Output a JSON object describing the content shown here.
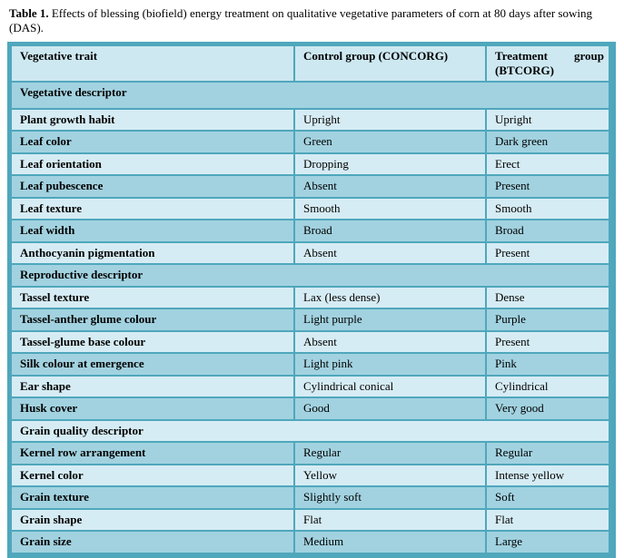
{
  "caption": {
    "label": "Table 1.",
    "text": " Effects of blessing (biofield) energy treatment on qualitative vegetative parameters of corn at 80 days after sowing (DAS)."
  },
  "table": {
    "columns": [
      "Vegetative trait",
      "Control group (CONCORG)",
      "Treatment group (BTCORG)"
    ],
    "rows": [
      {
        "type": "section",
        "label": "Vegetative descriptor"
      },
      {
        "type": "data",
        "trait": "Plant growth habit",
        "control": "Upright",
        "treatment": "Upright"
      },
      {
        "type": "data",
        "trait": "Leaf color",
        "control": "Green",
        "treatment": "Dark green"
      },
      {
        "type": "data",
        "trait": "Leaf orientation",
        "control": "Dropping",
        "treatment": "Erect"
      },
      {
        "type": "data",
        "trait": "Leaf pubescence",
        "control": "Absent",
        "treatment": "Present"
      },
      {
        "type": "data",
        "trait": "Leaf texture",
        "control": "Smooth",
        "treatment": "Smooth"
      },
      {
        "type": "data",
        "trait": "Leaf width",
        "control": "Broad",
        "treatment": "Broad"
      },
      {
        "type": "data",
        "trait": "Anthocyanin pigmentation",
        "control": "Absent",
        "treatment": "Present"
      },
      {
        "type": "section",
        "label": "Reproductive descriptor"
      },
      {
        "type": "data",
        "trait": "Tassel texture",
        "control": "Lax (less dense)",
        "treatment": "Dense"
      },
      {
        "type": "data",
        "trait": "Tassel-anther glume colour",
        "control": "Light purple",
        "treatment": "Purple"
      },
      {
        "type": "data",
        "trait": "Tassel-glume base colour",
        "control": "Absent",
        "treatment": "Present"
      },
      {
        "type": "data",
        "trait": "Silk colour at emergence",
        "control": "Light pink",
        "treatment": "Pink"
      },
      {
        "type": "data",
        "trait": "Ear shape",
        "control": "Cylindrical conical",
        "treatment": "Cylindrical"
      },
      {
        "type": "data",
        "trait": "Husk cover",
        "control": "Good",
        "treatment": "Very good"
      },
      {
        "type": "section",
        "label": "Grain quality descriptor"
      },
      {
        "type": "data",
        "trait": "Kernel row arrangement",
        "control": "Regular",
        "treatment": "Regular"
      },
      {
        "type": "data",
        "trait": "Kernel color",
        "control": "Yellow",
        "treatment": "Intense yellow"
      },
      {
        "type": "data",
        "trait": "Grain texture",
        "control": "Slightly soft",
        "treatment": "Soft"
      },
      {
        "type": "data",
        "trait": "Grain shape",
        "control": "Flat",
        "treatment": "Flat"
      },
      {
        "type": "data",
        "trait": "Grain size",
        "control": "Medium",
        "treatment": "Large"
      }
    ]
  },
  "colors": {
    "row_light": "#d6ecf4",
    "row_dark": "#a2d2e0",
    "border": "#4fa7bc",
    "header_bg": "#cde8f1",
    "text": "#000000",
    "page_bg": "#ffffff"
  }
}
